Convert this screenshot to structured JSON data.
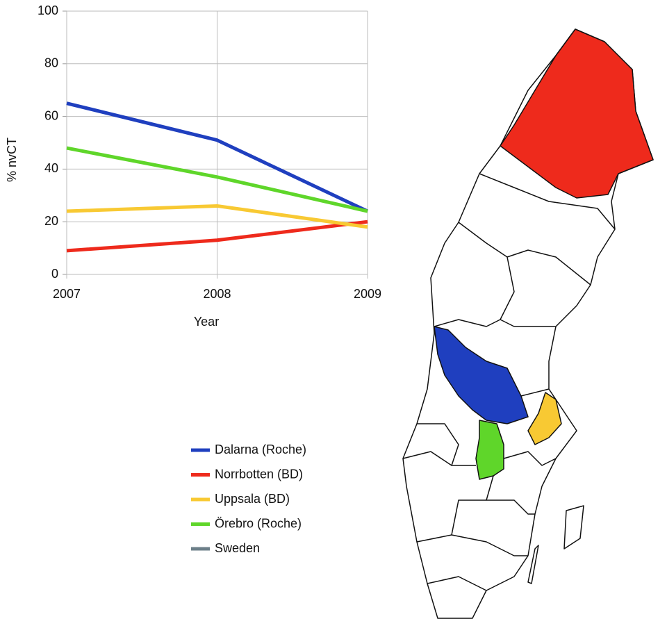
{
  "chart_data": {
    "type": "line",
    "categories": [
      "2007",
      "2008",
      "2009"
    ],
    "series": [
      {
        "name": "Dalarna (Roche)",
        "color": "#1f3fbf",
        "values": [
          65,
          51,
          24
        ]
      },
      {
        "name": "Norrbotten (BD)",
        "color": "#ee2a1c",
        "values": [
          9,
          13,
          20
        ]
      },
      {
        "name": "Uppsala (BD)",
        "color": "#f8c933",
        "values": [
          24,
          26,
          18
        ]
      },
      {
        "name": "Örebro (Roche)",
        "color": "#5fd62a",
        "values": [
          48,
          37,
          24
        ]
      },
      {
        "name": "Sweden",
        "color": "#6c7f89",
        "values": [
          null,
          null,
          null
        ]
      }
    ],
    "ylim": [
      0,
      100
    ],
    "yticks": [
      0,
      20,
      40,
      60,
      80,
      100
    ],
    "x_label": "Year",
    "y_label": "% nvCT",
    "grid": true
  }
}
